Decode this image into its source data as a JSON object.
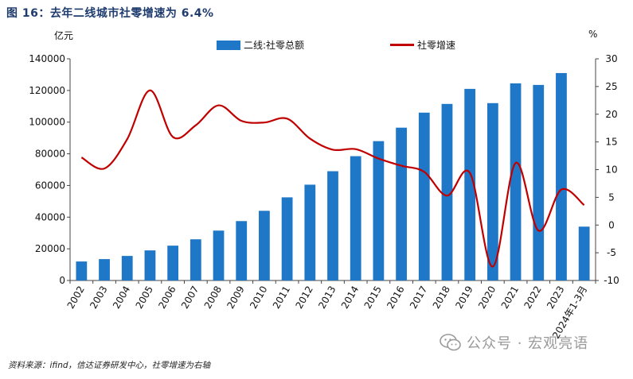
{
  "figure": {
    "title": "图 16：去年二线城市社零增速为 6.4%",
    "unit_left": "亿元",
    "unit_right": "%",
    "source": "资料来源：ifind，信达证券研发中心，社零增速为右轴",
    "watermark": "公众号 · 宏观亮语",
    "watermark_icon": "wechat-icon"
  },
  "chart_data": {
    "type": "bar",
    "categories": [
      "2002",
      "2003",
      "2004",
      "2005",
      "2006",
      "2007",
      "2008",
      "2009",
      "2010",
      "2011",
      "2012",
      "2013",
      "2014",
      "2015",
      "2016",
      "2017",
      "2018",
      "2019",
      "2020",
      "2021",
      "2022",
      "2023",
      "2024年1-3月"
    ],
    "series": [
      {
        "name": "二线:社零总额",
        "type": "bar",
        "axis": "left",
        "color": "#1f77c8",
        "values": [
          12000,
          13500,
          15500,
          19000,
          22000,
          26000,
          31500,
          37500,
          44000,
          52500,
          60500,
          69000,
          78500,
          88000,
          96500,
          106000,
          111500,
          121000,
          112000,
          124500,
          123500,
          131000,
          34000
        ]
      },
      {
        "name": "社零增速",
        "type": "line",
        "axis": "right",
        "color": "#c00000",
        "values": [
          12.2,
          10.2,
          15.5,
          24.3,
          15.9,
          18.0,
          21.6,
          18.8,
          18.5,
          19.2,
          15.6,
          13.6,
          13.7,
          12.0,
          10.7,
          9.6,
          5.3,
          9.4,
          -7.5,
          11.2,
          -1.0,
          6.4,
          3.6
        ]
      }
    ],
    "y_left": {
      "min": 0,
      "max": 140000,
      "ticks": [
        "0",
        "20000",
        "40000",
        "60000",
        "80000",
        "100000",
        "120000",
        "140000"
      ]
    },
    "y_right": {
      "min": -10,
      "max": 30,
      "ticks": [
        "-10",
        "-5",
        "0",
        "5",
        "10",
        "15",
        "20",
        "25",
        "30"
      ]
    },
    "grid": false,
    "legend": "top"
  }
}
